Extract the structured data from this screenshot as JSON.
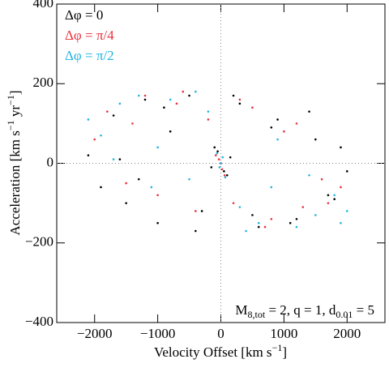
{
  "chart_data": {
    "type": "scatter",
    "x_label": [
      "Velocity Offset [km s",
      "−1",
      "]"
    ],
    "y_label": [
      "Acceleration [km s",
      "−1",
      " yr",
      "−1",
      "]"
    ],
    "annotation": [
      "M",
      "8,tot",
      " = 2, q = 1, d",
      "0.01",
      " =  5"
    ],
    "xlim": [
      -2600,
      2600
    ],
    "ylim": [
      -400,
      400
    ],
    "xticks": [
      {
        "value": -2000,
        "label": "−2000"
      },
      {
        "value": -1000,
        "label": "−1000"
      },
      0,
      1000,
      2000
    ],
    "yticks": [
      {
        "value": -400,
        "label": "−400"
      },
      {
        "value": -200,
        "label": "−200"
      },
      0,
      200,
      400
    ],
    "series": [
      {
        "name": "Δφ = 0",
        "color": "#000000",
        "x": [
          -2100,
          -1900,
          -1700,
          -1500,
          -1200,
          -1000,
          -800,
          -500,
          -300,
          -100,
          0,
          100,
          300,
          600,
          900,
          1200,
          1500,
          1800,
          2000,
          -1600,
          -1300,
          -900,
          -400,
          200,
          500,
          800,
          1100,
          1400,
          1700,
          1900,
          -50,
          50,
          -150,
          150
        ],
        "values": [
          20,
          -60,
          120,
          -100,
          160,
          -150,
          80,
          170,
          -120,
          40,
          0,
          -30,
          150,
          -160,
          110,
          -140,
          60,
          -90,
          -20,
          10,
          -40,
          140,
          -170,
          170,
          -130,
          90,
          -150,
          130,
          -80,
          40,
          30,
          -20,
          -10,
          15
        ]
      },
      {
        "name": "Δφ = π/4",
        "color": "#e8323c",
        "x": [
          -2000,
          -1800,
          -1500,
          -1200,
          -1000,
          -700,
          -400,
          -200,
          0,
          200,
          500,
          800,
          1000,
          1300,
          1600,
          1900,
          -1400,
          -600,
          300,
          700,
          1200,
          1700,
          -80,
          60,
          -30,
          20
        ],
        "values": [
          60,
          130,
          -50,
          170,
          -80,
          150,
          -120,
          110,
          0,
          -100,
          140,
          -140,
          80,
          -110,
          -40,
          -60,
          100,
          180,
          160,
          -160,
          100,
          -100,
          20,
          -30,
          10,
          -15
        ]
      },
      {
        "name": "Δφ = π/2",
        "color": "#22b5e0",
        "x": [
          -2100,
          -1900,
          -1600,
          -1300,
          -1000,
          -800,
          -500,
          -200,
          0,
          300,
          600,
          900,
          1200,
          1500,
          1800,
          2000,
          -1700,
          -1100,
          -400,
          400,
          800,
          1400,
          1900,
          -60,
          70,
          -20,
          30
        ],
        "values": [
          110,
          70,
          150,
          170,
          40,
          160,
          -40,
          130,
          0,
          -110,
          -150,
          60,
          -160,
          -130,
          -80,
          -120,
          10,
          -60,
          180,
          -170,
          -60,
          -30,
          -150,
          25,
          -35,
          -10,
          15
        ]
      }
    ]
  }
}
